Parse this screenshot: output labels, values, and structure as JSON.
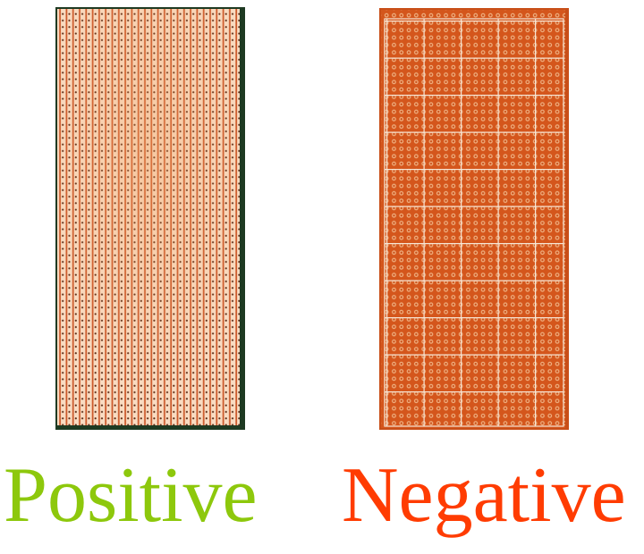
{
  "boards": [
    {
      "label": "Positive",
      "color": "#8dc80c",
      "board_type": "stripboard"
    },
    {
      "label": "Negative",
      "color": "#ff3c02",
      "board_type": "perfboard"
    }
  ]
}
